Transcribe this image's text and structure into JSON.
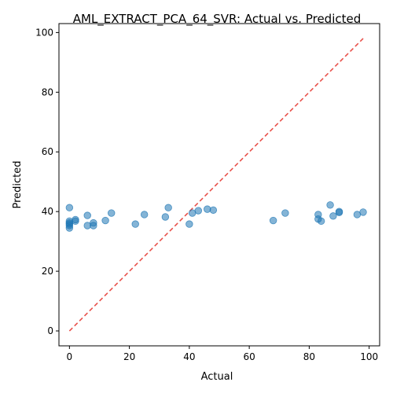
{
  "chart_data": {
    "type": "scatter",
    "title": "AML_EXTRACT_PCA_64_SVR: Actual vs. Predicted",
    "xlabel": "Actual",
    "ylabel": "Predicted",
    "xlim": [
      -3.5,
      103.5
    ],
    "ylim": [
      -5,
      103
    ],
    "xticks": [
      0,
      20,
      40,
      60,
      80,
      100
    ],
    "yticks": [
      0,
      20,
      40,
      60,
      80,
      100
    ],
    "grid": false,
    "point_color": "#1f77b4",
    "line_color": "#e8504a",
    "reference_line": {
      "style": "dashed",
      "from": [
        0,
        0
      ],
      "to": [
        98,
        98
      ]
    },
    "series": [
      {
        "points": [
          [
            0,
            41.3
          ],
          [
            0,
            36.8
          ],
          [
            0,
            36.2
          ],
          [
            0,
            35.8
          ],
          [
            0,
            35.3
          ],
          [
            0,
            34.5
          ],
          [
            2,
            37.3
          ],
          [
            2,
            36.8
          ],
          [
            6,
            38.7
          ],
          [
            6,
            35.3
          ],
          [
            8,
            36.2
          ],
          [
            8,
            35.3
          ],
          [
            12,
            37.0
          ],
          [
            14,
            39.5
          ],
          [
            22,
            35.8
          ],
          [
            25,
            39.0
          ],
          [
            32,
            38.2
          ],
          [
            33,
            41.3
          ],
          [
            40,
            35.8
          ],
          [
            41,
            39.5
          ],
          [
            43,
            40.3
          ],
          [
            46,
            40.8
          ],
          [
            48,
            40.5
          ],
          [
            68,
            37.0
          ],
          [
            72,
            39.5
          ],
          [
            83,
            39.0
          ],
          [
            83,
            37.5
          ],
          [
            84,
            36.8
          ],
          [
            87,
            42.2
          ],
          [
            88,
            38.5
          ],
          [
            90,
            40.0
          ],
          [
            90,
            39.7
          ],
          [
            96,
            39.0
          ],
          [
            98,
            39.8
          ]
        ]
      }
    ]
  }
}
